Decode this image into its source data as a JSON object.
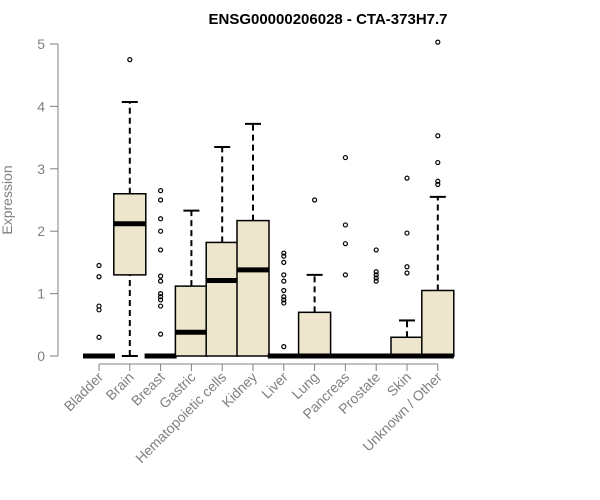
{
  "chart_data": {
    "type": "box",
    "title": "ENSG00000206028 - CTA-373H7.7",
    "xlabel": "",
    "ylabel": "Expression",
    "ylim": [
      0,
      5
    ],
    "yticks": [
      0,
      1,
      2,
      3,
      4,
      5
    ],
    "grid": false,
    "legend": "none",
    "box_fill": "#ede6cc",
    "categories": [
      "Bladder",
      "Brain",
      "Breast",
      "Gastric",
      "Hematopoietic cells",
      "Kidney",
      "Liver",
      "Lung",
      "Pancreas",
      "Prostate",
      "Skin",
      "Unknown / Other"
    ],
    "boxes": [
      {
        "whisker_low": 0,
        "q1": 0,
        "median": 0,
        "q3": 0,
        "whisker_high": 0,
        "outliers": [
          1.45,
          1.27,
          0.8,
          0.74,
          0.3
        ]
      },
      {
        "whisker_low": 0,
        "q1": 1.3,
        "median": 2.12,
        "q3": 2.6,
        "whisker_high": 4.07,
        "outliers": [
          4.75
        ]
      },
      {
        "whisker_low": 0,
        "q1": 0,
        "median": 0,
        "q3": 0,
        "whisker_high": 0,
        "outliers": [
          2.65,
          2.5,
          2.2,
          2.0,
          1.7,
          1.28,
          1.2,
          1.0,
          0.95,
          0.9,
          0.8,
          0.35
        ]
      },
      {
        "whisker_low": 0,
        "q1": 0,
        "median": 0.38,
        "q3": 1.12,
        "whisker_high": 2.33,
        "outliers": []
      },
      {
        "whisker_low": 0,
        "q1": 0,
        "median": 1.21,
        "q3": 1.82,
        "whisker_high": 3.35,
        "outliers": []
      },
      {
        "whisker_low": 0,
        "q1": 0,
        "median": 1.38,
        "q3": 2.17,
        "whisker_high": 3.72,
        "outliers": []
      },
      {
        "whisker_low": 0,
        "q1": 0,
        "median": 0,
        "q3": 0,
        "whisker_high": 0,
        "outliers": [
          1.65,
          1.6,
          1.5,
          1.3,
          1.2,
          1.05,
          0.95,
          0.9,
          0.85,
          0.15
        ]
      },
      {
        "whisker_low": 0,
        "q1": 0,
        "median": 0,
        "q3": 0.7,
        "whisker_high": 1.3,
        "outliers": [
          2.5
        ]
      },
      {
        "whisker_low": 0,
        "q1": 0,
        "median": 0,
        "q3": 0,
        "whisker_high": 0,
        "outliers": [
          3.18,
          2.1,
          1.8,
          1.3
        ]
      },
      {
        "whisker_low": 0,
        "q1": 0,
        "median": 0,
        "q3": 0,
        "whisker_high": 0,
        "outliers": [
          1.7,
          1.35,
          1.3,
          1.25,
          1.2
        ]
      },
      {
        "whisker_low": 0,
        "q1": 0,
        "median": 0,
        "q3": 0.3,
        "whisker_high": 0.57,
        "outliers": [
          2.85,
          1.97,
          1.43,
          1.33
        ]
      },
      {
        "whisker_low": 0,
        "q1": 0,
        "median": 0,
        "q3": 1.05,
        "whisker_high": 2.55,
        "outliers": [
          5.03,
          3.53,
          3.1,
          2.8,
          2.75
        ]
      }
    ]
  }
}
